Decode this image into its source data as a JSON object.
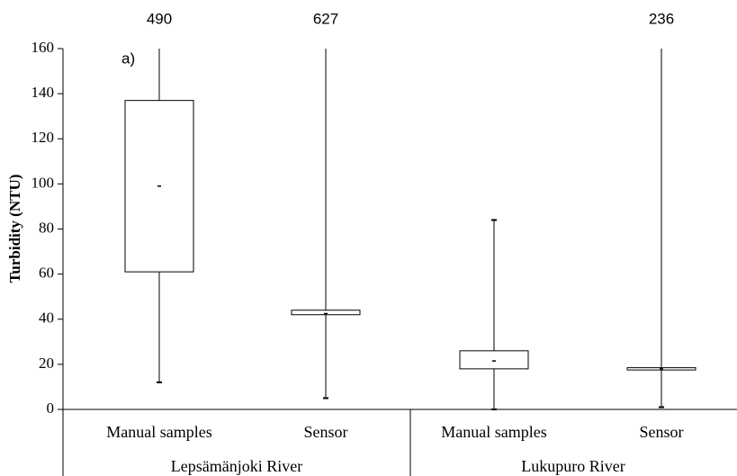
{
  "chart_data": {
    "type": "box",
    "ylabel": "Turbidity  (NTU)",
    "annotation": "a)",
    "categories": [
      "Manual samples",
      "Sensor",
      "Manual samples",
      "Sensor"
    ],
    "groups": [
      "Lepsämänjoki River",
      "Lukupuro River"
    ],
    "min": [
      12,
      5,
      0,
      1
    ],
    "q1": [
      61,
      42,
      18,
      17.5
    ],
    "median": [
      99,
      42.5,
      21.5,
      18
    ],
    "q3": [
      137,
      44,
      26,
      18.5
    ],
    "max": [
      490,
      627,
      84,
      236
    ],
    "color": "#000000",
    "ylim": [
      0,
      160
    ],
    "yticks": [
      0,
      20,
      40,
      60,
      80,
      100,
      120,
      140,
      160
    ]
  }
}
